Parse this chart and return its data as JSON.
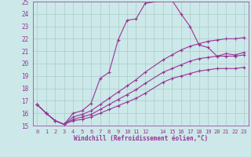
{
  "bg_color": "#cce8e8",
  "grid_color": "#aacccc",
  "line_color": "#993399",
  "xlim": [
    -0.5,
    23.5
  ],
  "ylim": [
    15,
    25
  ],
  "xtick_positions": [
    0,
    1,
    2,
    3,
    4,
    5,
    6,
    7,
    8,
    9,
    10,
    11,
    12,
    13,
    14,
    15,
    16,
    17,
    18,
    19,
    20,
    21,
    22,
    23
  ],
  "xtick_labels": [
    "0",
    "1",
    "2",
    "3",
    "4",
    "5",
    "6",
    "7",
    "8",
    "9",
    "10",
    "11",
    "12",
    "",
    "14",
    "15",
    "16",
    "17",
    "18",
    "19",
    "20",
    "21",
    "22",
    "23"
  ],
  "yticks": [
    15,
    16,
    17,
    18,
    19,
    20,
    21,
    22,
    23,
    24,
    25
  ],
  "xlabel": "Windchill (Refroidissement éolien,°C)",
  "series1_x": [
    0,
    1,
    2,
    3,
    4,
    5,
    6,
    7,
    8,
    9,
    10,
    11,
    12,
    14,
    15,
    16,
    17,
    18,
    19,
    20,
    21,
    22,
    23
  ],
  "series1_y": [
    16.7,
    16.0,
    15.4,
    15.1,
    16.0,
    16.2,
    16.8,
    18.8,
    19.3,
    21.9,
    23.5,
    23.6,
    24.85,
    25.1,
    25.1,
    24.0,
    23.0,
    21.5,
    21.3,
    20.6,
    20.8,
    20.7,
    20.9
  ],
  "series2_x": [
    0,
    1,
    2,
    3,
    4,
    5,
    6,
    7,
    8,
    9,
    10,
    11,
    12,
    14,
    15,
    16,
    17,
    18,
    19,
    20,
    21,
    22,
    23
  ],
  "series2_y": [
    16.7,
    16.0,
    15.4,
    15.1,
    15.7,
    15.9,
    16.2,
    16.7,
    17.2,
    17.7,
    18.2,
    18.7,
    19.3,
    20.3,
    20.7,
    21.1,
    21.4,
    21.6,
    21.8,
    21.9,
    22.0,
    22.0,
    22.1
  ],
  "series3_x": [
    0,
    1,
    2,
    3,
    4,
    5,
    6,
    7,
    8,
    9,
    10,
    11,
    12,
    14,
    15,
    16,
    17,
    18,
    19,
    20,
    21,
    22,
    23
  ],
  "series3_y": [
    16.7,
    16.0,
    15.4,
    15.1,
    15.5,
    15.7,
    15.9,
    16.3,
    16.7,
    17.1,
    17.5,
    17.9,
    18.4,
    19.3,
    19.6,
    19.9,
    20.2,
    20.4,
    20.5,
    20.6,
    20.6,
    20.6,
    20.7
  ],
  "series4_x": [
    0,
    1,
    2,
    3,
    4,
    5,
    6,
    7,
    8,
    9,
    10,
    11,
    12,
    14,
    15,
    16,
    17,
    18,
    19,
    20,
    21,
    22,
    23
  ],
  "series4_y": [
    16.7,
    16.0,
    15.4,
    15.1,
    15.4,
    15.5,
    15.7,
    16.0,
    16.3,
    16.6,
    16.9,
    17.2,
    17.6,
    18.5,
    18.8,
    19.0,
    19.2,
    19.4,
    19.5,
    19.6,
    19.6,
    19.6,
    19.7
  ]
}
